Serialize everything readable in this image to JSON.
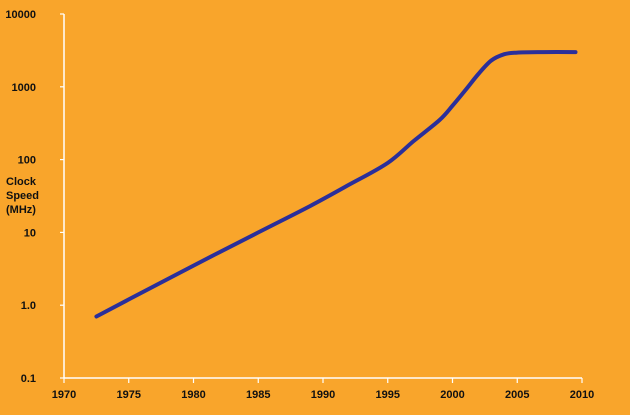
{
  "chart_data": {
    "type": "line",
    "title": "",
    "ylabel_lines": [
      "Clock",
      "Speed",
      "(MHz)"
    ],
    "xlabel": "",
    "x_ticks": [
      "1970",
      "1975",
      "1980",
      "1985",
      "1990",
      "1995",
      "2000",
      "2005",
      "2010"
    ],
    "y_ticks": [
      "0.1",
      "1.0",
      "10",
      "100",
      "1000",
      "10000"
    ],
    "xlim": [
      1970,
      2010
    ],
    "ylim": [
      0.1,
      10000
    ],
    "y_scale": "log",
    "grid": false,
    "colors": {
      "background": "#f9a52b",
      "line": "#2b2f9a",
      "axis": "#ffffff",
      "text": "#111111"
    },
    "series": [
      {
        "x": [
          1972.5,
          1975,
          1980,
          1985,
          1989,
          1992,
          1995,
          1997,
          1999,
          2000,
          2001,
          2002,
          2003,
          2004,
          2005,
          2007,
          2009.5
        ],
        "y": [
          0.7,
          1.2,
          3.5,
          10,
          23,
          45,
          90,
          180,
          350,
          550,
          900,
          1500,
          2300,
          2800,
          2950,
          3000,
          3000
        ]
      }
    ]
  }
}
